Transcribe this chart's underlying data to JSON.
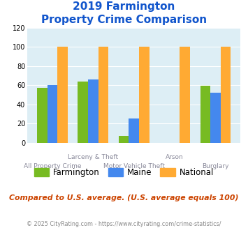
{
  "title_line1": "2019 Farmington",
  "title_line2": "Property Crime Comparison",
  "farmington": [
    57,
    64,
    7,
    0,
    59
  ],
  "maine": [
    60,
    66,
    25,
    0,
    52
  ],
  "national": [
    100,
    100,
    100,
    100,
    100
  ],
  "color_farmington": "#77bb22",
  "color_maine": "#4488ee",
  "color_national": "#ffaa33",
  "ylim": [
    0,
    120
  ],
  "yticks": [
    0,
    20,
    40,
    60,
    80,
    100,
    120
  ],
  "background_color": "#ddeef5",
  "title_color": "#1155cc",
  "label_color": "#888899",
  "footnote_color": "#cc4400",
  "footer_color": "#888888",
  "link_color": "#4488cc",
  "title_fs": 11,
  "footnote": "Compared to U.S. average. (U.S. average equals 100)",
  "copyright": "© 2025 CityRating.com - https://www.cityrating.com/crime-statistics/"
}
